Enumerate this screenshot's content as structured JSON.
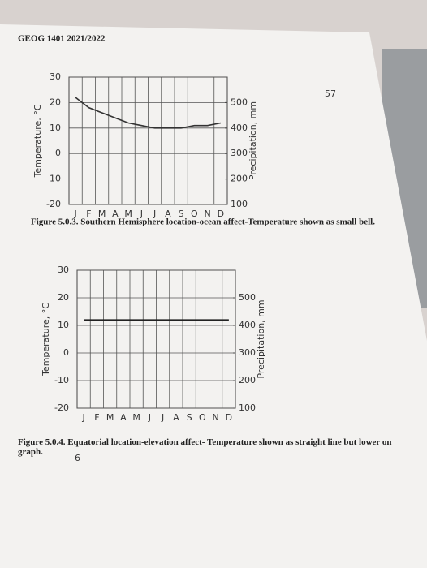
{
  "header": {
    "title": "GEOG 1401 2021/2022",
    "page_number": "57"
  },
  "chart_data": [
    {
      "type": "line",
      "categories": [
        "J",
        "F",
        "M",
        "A",
        "M",
        "J",
        "J",
        "A",
        "S",
        "O",
        "N",
        "D"
      ],
      "values": [
        22,
        18,
        16,
        14,
        12,
        11,
        10,
        10,
        10,
        11,
        11,
        12
      ],
      "color": "#333333",
      "ylabel": "Temperature, °C",
      "y2label": "Precipitation, mm",
      "ylim": [
        -20,
        30
      ],
      "yticks": [
        -20,
        -10,
        0,
        10,
        20,
        30
      ],
      "y2lim": [
        100,
        600
      ],
      "y2ticks": [
        100,
        200,
        300,
        400,
        500
      ],
      "grid": true,
      "caption": "Figure 5.0.3. Southern Hemisphere location-ocean affect-Temperature shown as small bell."
    },
    {
      "type": "line",
      "categories": [
        "J",
        "F",
        "M",
        "A",
        "M",
        "J",
        "J",
        "A",
        "S",
        "O",
        "N",
        "D"
      ],
      "values": [
        12,
        12,
        12,
        12,
        12,
        12,
        12,
        12,
        12,
        12,
        12,
        12
      ],
      "color": "#222222",
      "ylabel": "Temperature, °C",
      "y2label": "Precipitation, mm",
      "ylim": [
        -20,
        30
      ],
      "yticks": [
        -20,
        -10,
        0,
        10,
        20,
        30
      ],
      "y2lim": [
        100,
        600
      ],
      "y2ticks": [
        100,
        200,
        300,
        400,
        500
      ],
      "grid": true,
      "caption": "Figure 5.0.4. Equatorial location-elevation affect- Temperature shown as straight line but lower on graph.",
      "annotation": "6"
    }
  ]
}
